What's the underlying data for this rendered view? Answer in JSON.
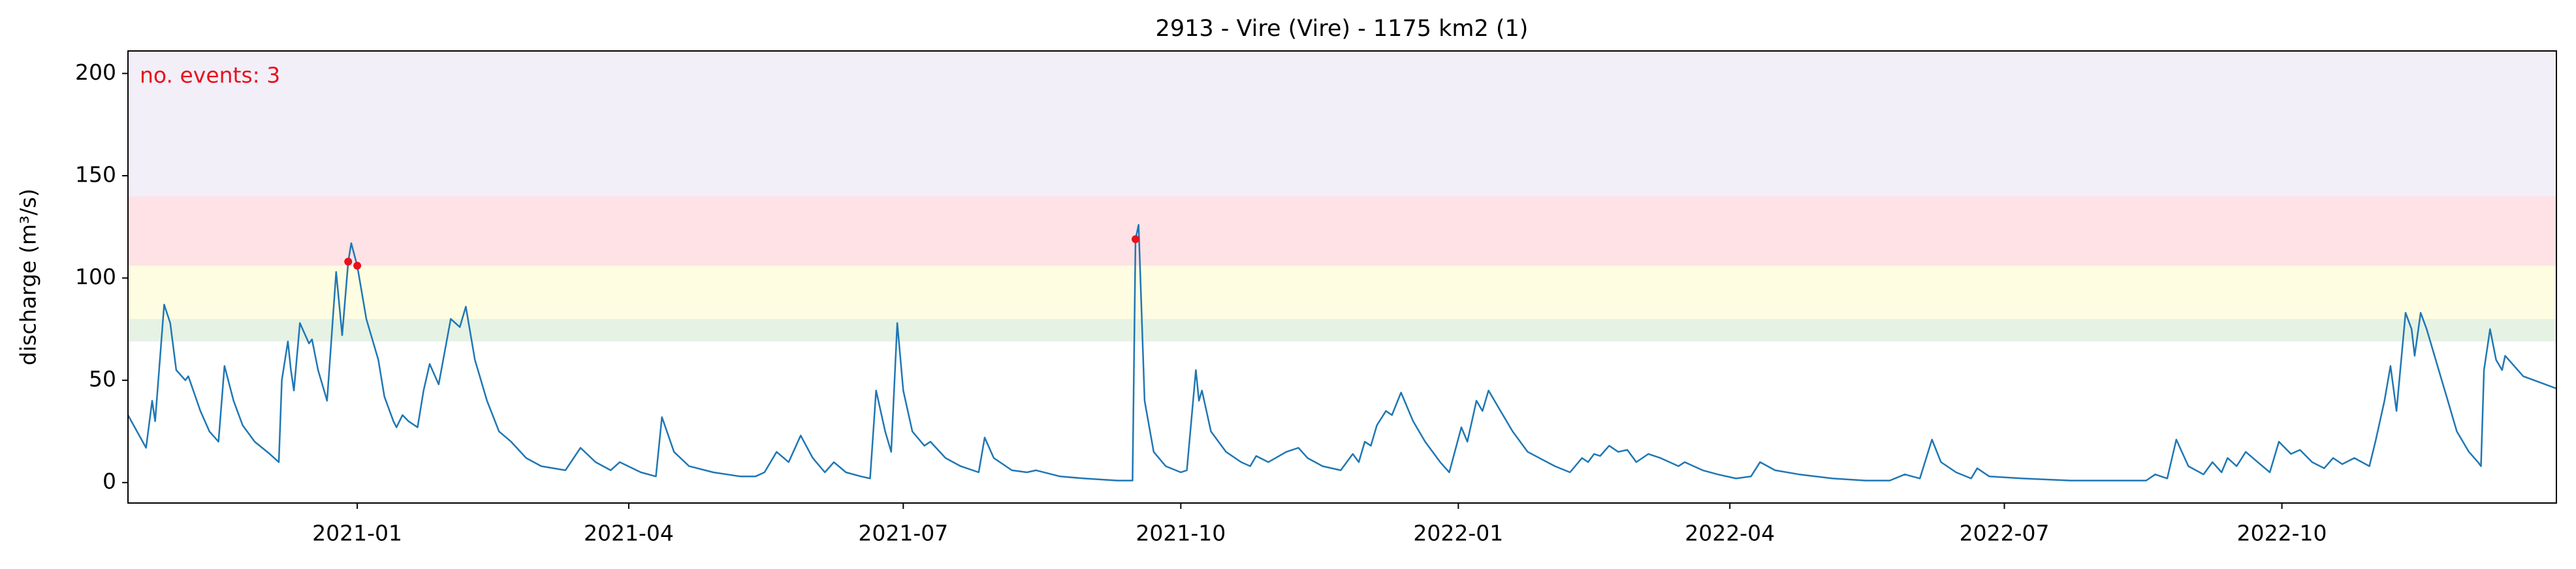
{
  "chart_data": {
    "type": "line",
    "title": "2913 - Vire (Vire) - 1175 km2 (1)",
    "ylabel": "discharge (m³/s)",
    "annotation": "no. events: 3",
    "color": "#1f77b4",
    "x": [
      "2020-10-17",
      "2020-10-23",
      "2020-10-25",
      "2020-10-26",
      "2020-10-29",
      "2020-10-31",
      "2020-11-02",
      "2020-11-05",
      "2020-11-06",
      "2020-11-10",
      "2020-11-13",
      "2020-11-16",
      "2020-11-18",
      "2020-11-21",
      "2020-11-24",
      "2020-11-28",
      "2020-12-03",
      "2020-12-06",
      "2020-12-07",
      "2020-12-09",
      "2020-12-10",
      "2020-12-11",
      "2020-12-13",
      "2020-12-16",
      "2020-12-17",
      "2020-12-19",
      "2020-12-22",
      "2020-12-25",
      "2020-12-27",
      "2020-12-29",
      "2020-12-30",
      "2021-01-01",
      "2021-01-04",
      "2021-01-08",
      "2021-01-10",
      "2021-01-13",
      "2021-01-14",
      "2021-01-16",
      "2021-01-18",
      "2021-01-21",
      "2021-01-23",
      "2021-01-25",
      "2021-01-28",
      "2021-02-01",
      "2021-02-04",
      "2021-02-06",
      "2021-02-09",
      "2021-02-13",
      "2021-02-17",
      "2021-02-21",
      "2021-02-26",
      "2021-03-03",
      "2021-03-11",
      "2021-03-16",
      "2021-03-21",
      "2021-03-26",
      "2021-03-29",
      "2021-04-05",
      "2021-04-10",
      "2021-04-12",
      "2021-04-16",
      "2021-04-21",
      "2021-04-29",
      "2021-05-08",
      "2021-05-13",
      "2021-05-16",
      "2021-05-20",
      "2021-05-24",
      "2021-05-28",
      "2021-06-01",
      "2021-06-05",
      "2021-06-08",
      "2021-06-12",
      "2021-06-17",
      "2021-06-20",
      "2021-06-22",
      "2021-06-25",
      "2021-06-27",
      "2021-06-29",
      "2021-07-01",
      "2021-07-04",
      "2021-07-08",
      "2021-07-10",
      "2021-07-15",
      "2021-07-20",
      "2021-07-26",
      "2021-07-28",
      "2021-07-31",
      "2021-08-06",
      "2021-08-11",
      "2021-08-14",
      "2021-08-22",
      "2021-08-30",
      "2021-09-10",
      "2021-09-15",
      "2021-09-16",
      "2021-09-17",
      "2021-09-19",
      "2021-09-22",
      "2021-09-26",
      "2021-10-01",
      "2021-10-03",
      "2021-10-06",
      "2021-10-07",
      "2021-10-08",
      "2021-10-11",
      "2021-10-16",
      "2021-10-21",
      "2021-10-24",
      "2021-10-26",
      "2021-10-30",
      "2021-11-05",
      "2021-11-09",
      "2021-11-12",
      "2021-11-17",
      "2021-11-23",
      "2021-11-27",
      "2021-11-29",
      "2021-12-01",
      "2021-12-03",
      "2021-12-05",
      "2021-12-08",
      "2021-12-10",
      "2021-12-13",
      "2021-12-17",
      "2021-12-21",
      "2021-12-26",
      "2021-12-29",
      "2022-01-02",
      "2022-01-04",
      "2022-01-07",
      "2022-01-09",
      "2022-01-11",
      "2022-01-15",
      "2022-01-19",
      "2022-01-24",
      "2022-02-02",
      "2022-02-07",
      "2022-02-11",
      "2022-02-13",
      "2022-02-15",
      "2022-02-17",
      "2022-02-20",
      "2022-02-23",
      "2022-02-26",
      "2022-03-01",
      "2022-03-05",
      "2022-03-09",
      "2022-03-15",
      "2022-03-17",
      "2022-03-23",
      "2022-03-28",
      "2022-04-03",
      "2022-04-08",
      "2022-04-11",
      "2022-04-16",
      "2022-04-24",
      "2022-05-05",
      "2022-05-16",
      "2022-05-24",
      "2022-05-29",
      "2022-06-03",
      "2022-06-07",
      "2022-06-10",
      "2022-06-15",
      "2022-06-20",
      "2022-06-22",
      "2022-06-26",
      "2022-07-07",
      "2022-07-23",
      "2022-08-17",
      "2022-08-20",
      "2022-08-24",
      "2022-08-27",
      "2022-08-31",
      "2022-09-05",
      "2022-09-08",
      "2022-09-11",
      "2022-09-13",
      "2022-09-16",
      "2022-09-19",
      "2022-09-23",
      "2022-09-27",
      "2022-09-30",
      "2022-10-04",
      "2022-10-07",
      "2022-10-11",
      "2022-10-15",
      "2022-10-18",
      "2022-10-21",
      "2022-10-25",
      "2022-10-30",
      "2022-11-01",
      "2022-11-04",
      "2022-11-06",
      "2022-11-08",
      "2022-11-11",
      "2022-11-13",
      "2022-11-14",
      "2022-11-16",
      "2022-11-18",
      "2022-11-22",
      "2022-11-25",
      "2022-11-28",
      "2022-12-02",
      "2022-12-05",
      "2022-12-06",
      "2022-12-07",
      "2022-12-09",
      "2022-12-11",
      "2022-12-13",
      "2022-12-14",
      "2022-12-20",
      "2022-12-31"
    ],
    "values": [
      33,
      17,
      40,
      30,
      87,
      78,
      55,
      50,
      52,
      35,
      25,
      20,
      57,
      40,
      28,
      20,
      14,
      10,
      50,
      69,
      55,
      45,
      78,
      68,
      70,
      55,
      40,
      103,
      72,
      108,
      117,
      106,
      80,
      60,
      42,
      30,
      27,
      33,
      30,
      27,
      45,
      58,
      48,
      80,
      76,
      86,
      60,
      40,
      25,
      20,
      12,
      8,
      6,
      17,
      10,
      6,
      10,
      5,
      3,
      32,
      15,
      8,
      5,
      3,
      3,
      5,
      15,
      10,
      23,
      12,
      5,
      10,
      5,
      3,
      2,
      45,
      25,
      15,
      78,
      45,
      25,
      18,
      20,
      12,
      8,
      5,
      22,
      12,
      6,
      5,
      6,
      3,
      2,
      1,
      1,
      119,
      126,
      40,
      15,
      8,
      5,
      6,
      55,
      40,
      45,
      25,
      15,
      10,
      8,
      13,
      10,
      15,
      17,
      12,
      8,
      6,
      14,
      10,
      20,
      18,
      28,
      35,
      33,
      44,
      30,
      20,
      10,
      5,
      27,
      20,
      40,
      35,
      45,
      35,
      25,
      15,
      8,
      5,
      12,
      10,
      14,
      13,
      18,
      15,
      16,
      10,
      14,
      12,
      8,
      10,
      6,
      4,
      2,
      3,
      10,
      6,
      4,
      2,
      1,
      1,
      4,
      2,
      21,
      10,
      5,
      2,
      7,
      3,
      2,
      1,
      1,
      4,
      2,
      21,
      8,
      4,
      10,
      5,
      12,
      8,
      15,
      10,
      5,
      20,
      14,
      16,
      10,
      7,
      12,
      9,
      12,
      8,
      20,
      40,
      57,
      35,
      83,
      75,
      62,
      83,
      75,
      55,
      40,
      25,
      15,
      10,
      8,
      55,
      75,
      60,
      55,
      62,
      52,
      46
    ],
    "events": {
      "color": "#e8111c",
      "x": [
        "2020-12-29",
        "2021-01-01",
        "2021-09-16"
      ],
      "values": [
        108,
        106,
        119
      ]
    },
    "bands": {
      "from": [
        69,
        80,
        106,
        140
      ],
      "colors": [
        "#e5f2e4",
        "#fefde2",
        "#fee2e5",
        "#f2eff9"
      ]
    },
    "xlim": [
      "2020-10-17",
      "2022-12-31"
    ],
    "xticks": [
      {
        "value": "2021-01-01",
        "label": "2021-01"
      },
      {
        "value": "2021-04-01",
        "label": "2021-04"
      },
      {
        "value": "2021-07-01",
        "label": "2021-07"
      },
      {
        "value": "2021-10-01",
        "label": "2021-10"
      },
      {
        "value": "2022-01-01",
        "label": "2022-01"
      },
      {
        "value": "2022-04-01",
        "label": "2022-04"
      },
      {
        "value": "2022-07-01",
        "label": "2022-07"
      },
      {
        "value": "2022-10-01",
        "label": "2022-10"
      }
    ],
    "ylim": [
      -10,
      211
    ],
    "yticks": [
      0,
      50,
      100,
      150,
      200
    ]
  }
}
